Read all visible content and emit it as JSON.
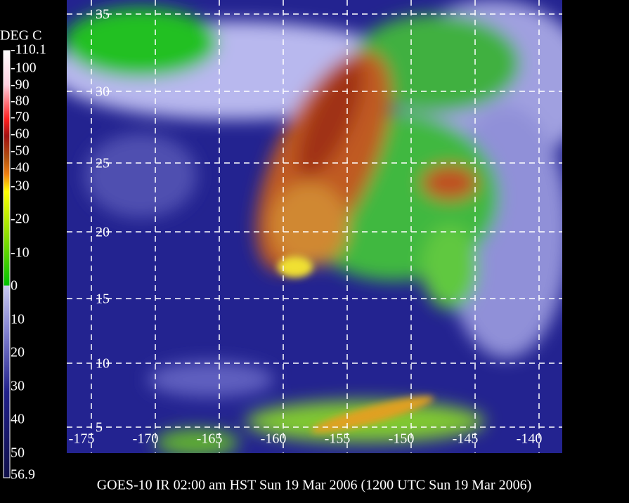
{
  "scale": {
    "title": "DEG C",
    "labels": [
      "-110.1",
      "-100",
      "-90",
      "-80",
      "-70",
      "-60",
      "-50",
      "-40",
      "-30",
      "-20",
      "-10",
      "0",
      "10",
      "20",
      "30",
      "40",
      "50",
      "56.9"
    ]
  },
  "map": {
    "latitude_labels": [
      "35",
      "30",
      "25",
      "20",
      "15",
      "10",
      "5"
    ],
    "longitude_labels": [
      "-175",
      "-170",
      "-165",
      "-160",
      "-155",
      "-150",
      "-145",
      "-140"
    ]
  },
  "caption": "GOES-10 IR 02:00 am HST Sun 19 Mar 2006 (1200 UTC Sun 19 Mar 2006)"
}
